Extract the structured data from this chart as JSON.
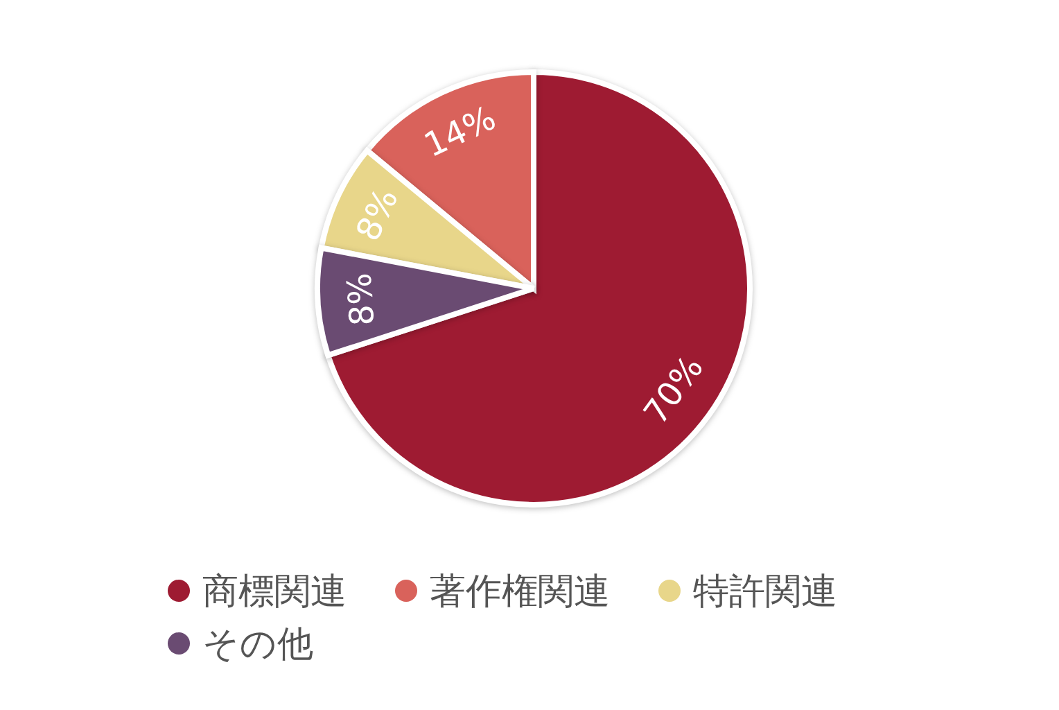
{
  "chart_data": {
    "type": "pie",
    "categories": [
      "商標関連",
      "著作権関連",
      "特許関連",
      "その他"
    ],
    "values": [
      70,
      14,
      8,
      8
    ],
    "colors": [
      "#9e1b32",
      "#d9625b",
      "#e8d68a",
      "#6a4b72"
    ],
    "value_labels": [
      "70%",
      "14%",
      "8%",
      "8%"
    ],
    "legend": "bottom"
  }
}
